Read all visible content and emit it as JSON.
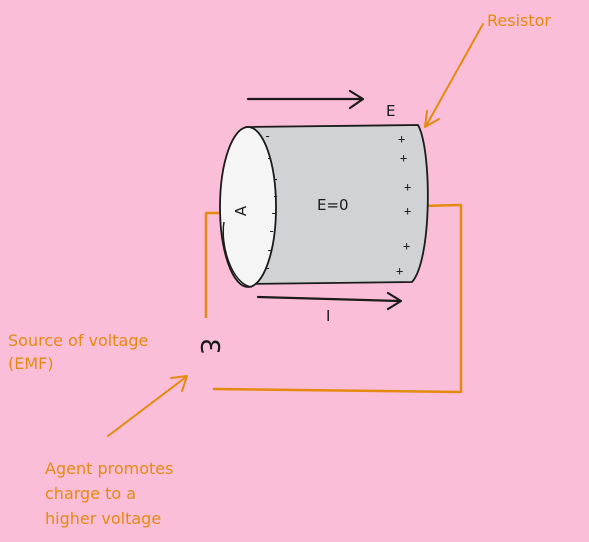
{
  "labels": {
    "resistor": "Resistor",
    "emf_line1": "Source of voltage",
    "emf_line2": "(EMF)",
    "agent_line1": "Agent promotes",
    "agent_line2": "charge to a",
    "agent_line3": "higher voltage",
    "field_top": "E",
    "field_inside": "E=0",
    "current": "I",
    "area": "A",
    "emf_symbol": "Ɛ"
  },
  "charges": {
    "negative": "-",
    "positive": "+"
  },
  "colors": {
    "background": "#fbbed8",
    "annotation": "#e58a10",
    "wire": "#e58a10",
    "cylinder_body": "#d0d2d6",
    "cylinder_face": "#f5f5f5",
    "ink": "#1b1b1b"
  }
}
